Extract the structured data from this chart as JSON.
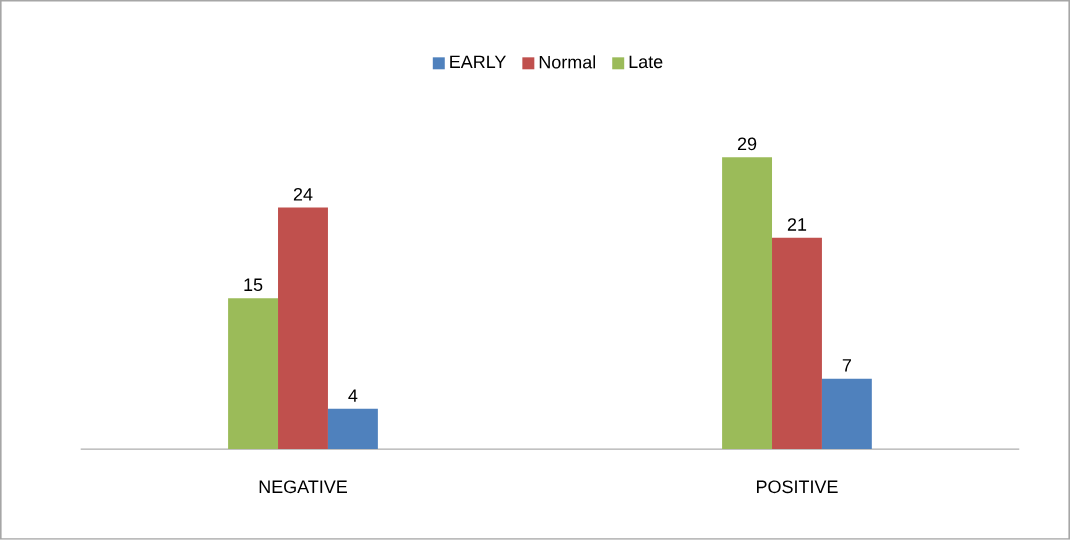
{
  "chart_data": {
    "type": "bar",
    "categories": [
      "NEGATIVE",
      "POSITIVE"
    ],
    "series": [
      {
        "name": "Late",
        "color": "#9bbb59",
        "values": [
          15,
          29
        ]
      },
      {
        "name": "Normal",
        "color": "#c0504d",
        "values": [
          24,
          21
        ]
      },
      {
        "name": "EARLY",
        "color": "#4f81bd",
        "values": [
          4,
          7
        ]
      }
    ],
    "data_labels": true,
    "legend": "top"
  }
}
